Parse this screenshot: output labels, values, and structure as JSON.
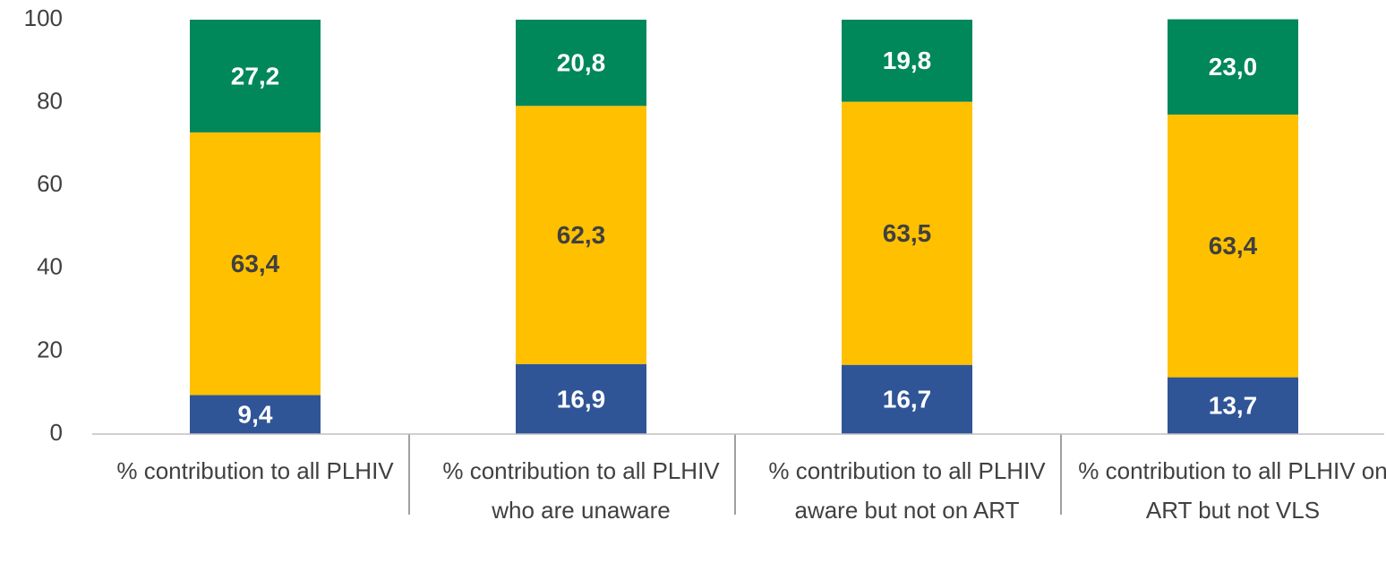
{
  "chart_data": {
    "type": "stacked_bar",
    "categories": [
      "% contribution to all PLHIV",
      "% contribution to all PLHIV who are unaware",
      "% contribution to all PLHIV aware but not on ART",
      "% contribution to all PLHIV on ART but not VLS"
    ],
    "series": [
      {
        "color": "#2f5597",
        "values": [
          9.4,
          16.9,
          16.7,
          13.7
        ],
        "value_labels": [
          "9,4",
          "16,9",
          "16,7",
          "13,7"
        ]
      },
      {
        "color": "#ffc000",
        "values": [
          63.4,
          62.3,
          63.5,
          63.4
        ],
        "value_labels": [
          "63,4",
          "62,3",
          "63,5",
          "63,4"
        ]
      },
      {
        "color": "#00875a",
        "values": [
          27.2,
          20.8,
          19.8,
          23.0
        ],
        "value_labels": [
          "27,2",
          "20,8",
          "19,8",
          "23,0"
        ]
      }
    ],
    "ylim": [
      0,
      100
    ],
    "yticks": [
      0,
      20,
      40,
      60,
      80,
      100
    ],
    "grid": false
  }
}
